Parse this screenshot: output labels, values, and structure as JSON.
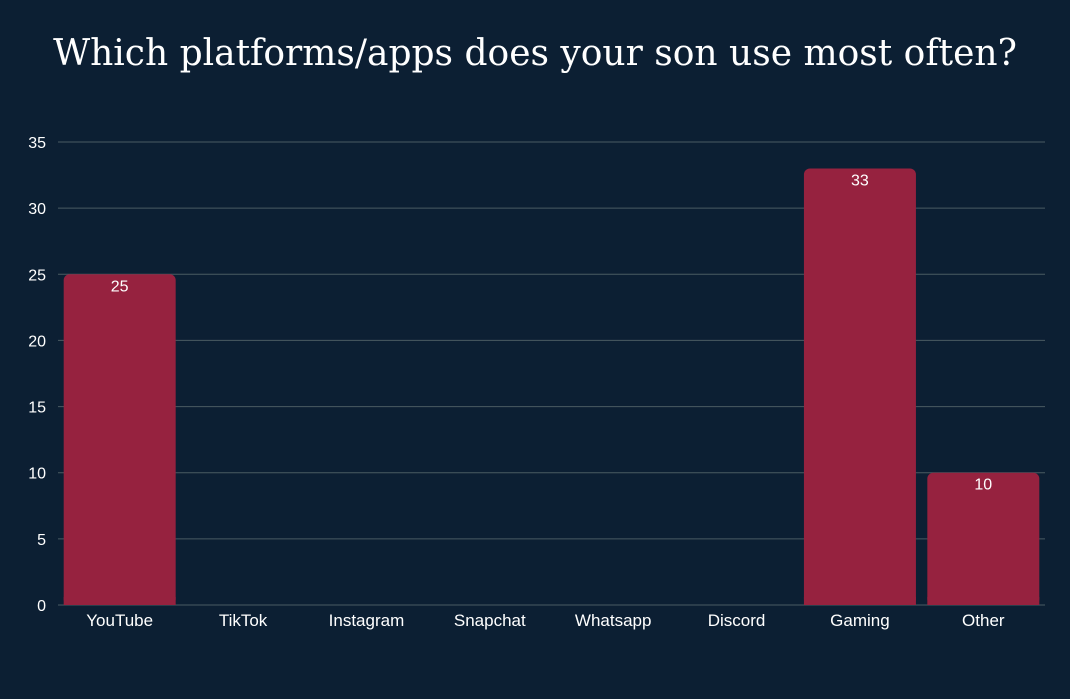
{
  "chart_data": {
    "type": "bar",
    "title": "Which platforms/apps does your son use most often?",
    "categories": [
      "YouTube",
      "TikTok",
      "Instagram",
      "Snapchat",
      "Whatsapp",
      "Discord",
      "Gaming",
      "Other"
    ],
    "values": [
      25,
      0,
      0,
      0,
      0,
      0,
      33,
      10
    ],
    "data_labels": [
      "25",
      "",
      "",
      "",
      "",
      "",
      "33",
      "10"
    ],
    "xlabel": "",
    "ylabel": "",
    "ylim": [
      0,
      35
    ],
    "yticks": [
      0,
      5,
      10,
      15,
      20,
      25,
      30,
      35
    ],
    "grid": true,
    "legend": "none",
    "colors": {
      "background": "#0c1f33",
      "bar": "#96223f",
      "grid": "#4a5b63",
      "text": "#ffffff"
    }
  }
}
